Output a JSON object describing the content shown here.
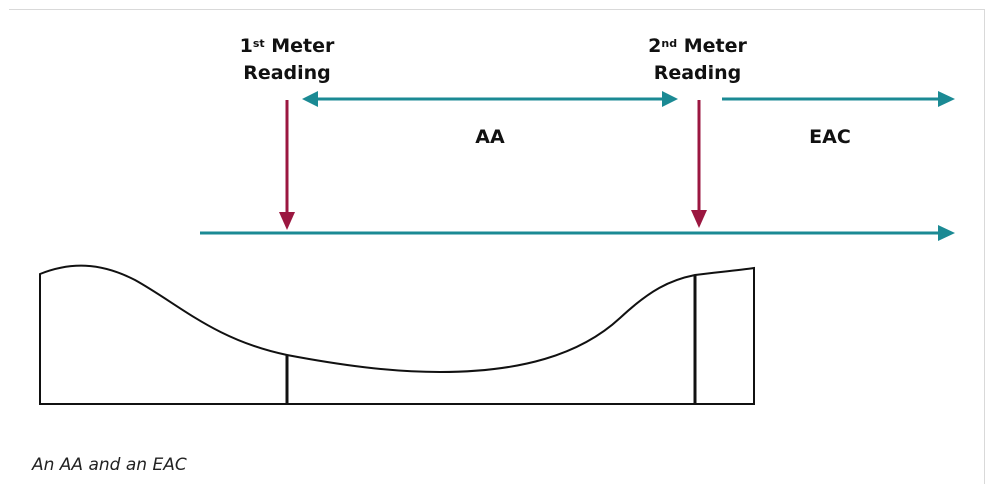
{
  "diagram": {
    "colors": {
      "timeline": "#1b8a94",
      "reading_arrow": "#9b1740",
      "outline": "#111111",
      "frame": "#d9d9d9"
    },
    "reading1": {
      "num": "1",
      "sup": "st",
      "line1_rest": " Meter",
      "line2": "Reading"
    },
    "reading2": {
      "num": "2",
      "sup": "nd",
      "line1_rest": " Meter",
      "line2": "Reading"
    },
    "period_aa": "AA",
    "period_eac": "EAC",
    "caption": "An AA and an EAC"
  }
}
